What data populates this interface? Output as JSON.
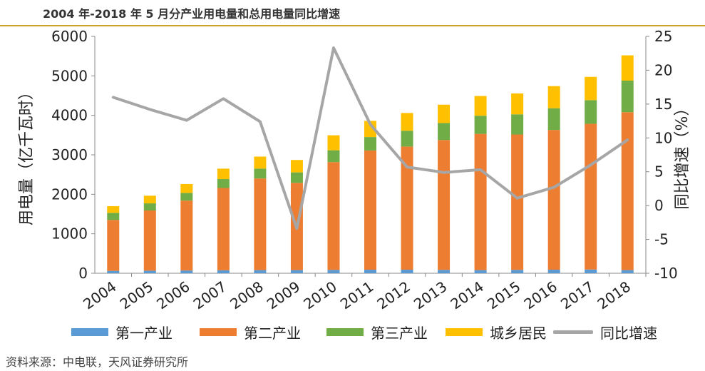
{
  "title": "2004 年-2018 年 5 月分产业用电量和总用电量同比增速",
  "source": "资料来源：中电联，天风证券研究所",
  "colors": {
    "primary": "#5b9bd5",
    "secondary": "#ed7d31",
    "tertiary": "#70ad47",
    "residential": "#ffc000",
    "growth": "#a6a6a6",
    "axis": "#888888",
    "title_rule": "#c9a227"
  },
  "chart_data": {
    "type": "bar",
    "stacked": true,
    "title": "2004 年-2018 年 5 月分产业用电量和总用电量同比增速",
    "categories": [
      "2004",
      "2005",
      "2006",
      "2007",
      "2008",
      "2009",
      "2010",
      "2011",
      "2012",
      "2013",
      "2014",
      "2015",
      "2016",
      "2017",
      "2018"
    ],
    "series": [
      {
        "name": "第一产业",
        "axis": "left",
        "values": [
          60,
          65,
          70,
          75,
          80,
          80,
          85,
          90,
          90,
          85,
          80,
          85,
          90,
          95,
          80
        ]
      },
      {
        "name": "第二产业",
        "axis": "left",
        "values": [
          1290,
          1525,
          1770,
          2085,
          2320,
          2210,
          2730,
          3020,
          3120,
          3290,
          3450,
          3430,
          3540,
          3690,
          4000
        ]
      },
      {
        "name": "第三产业",
        "axis": "left",
        "values": [
          180,
          180,
          195,
          225,
          250,
          265,
          300,
          340,
          400,
          430,
          460,
          510,
          550,
          600,
          800
        ]
      },
      {
        "name": "城乡居民",
        "axis": "left",
        "values": [
          170,
          195,
          225,
          265,
          305,
          315,
          380,
          410,
          450,
          465,
          500,
          530,
          560,
          590,
          640
        ]
      },
      {
        "name": "同比增速",
        "axis": "right",
        "type": "line",
        "values": [
          16,
          14.2,
          12.6,
          15.8,
          12.4,
          -3.4,
          23.3,
          12.0,
          5.7,
          4.9,
          5.3,
          1.1,
          2.7,
          6.0,
          9.7
        ]
      }
    ],
    "ylabel": "用电量（亿千瓦时）",
    "ylim": [
      0,
      6000
    ],
    "yticks": [
      "0",
      "1000",
      "2000",
      "3000",
      "4000",
      "5000",
      "6000"
    ],
    "y2label": "同比增速（%）",
    "y2lim": [
      -10,
      25
    ],
    "y2ticks": [
      "-10",
      "-5",
      "0",
      "5",
      "10",
      "15",
      "20",
      "25"
    ],
    "grid": false,
    "legend_position": "bottom"
  }
}
